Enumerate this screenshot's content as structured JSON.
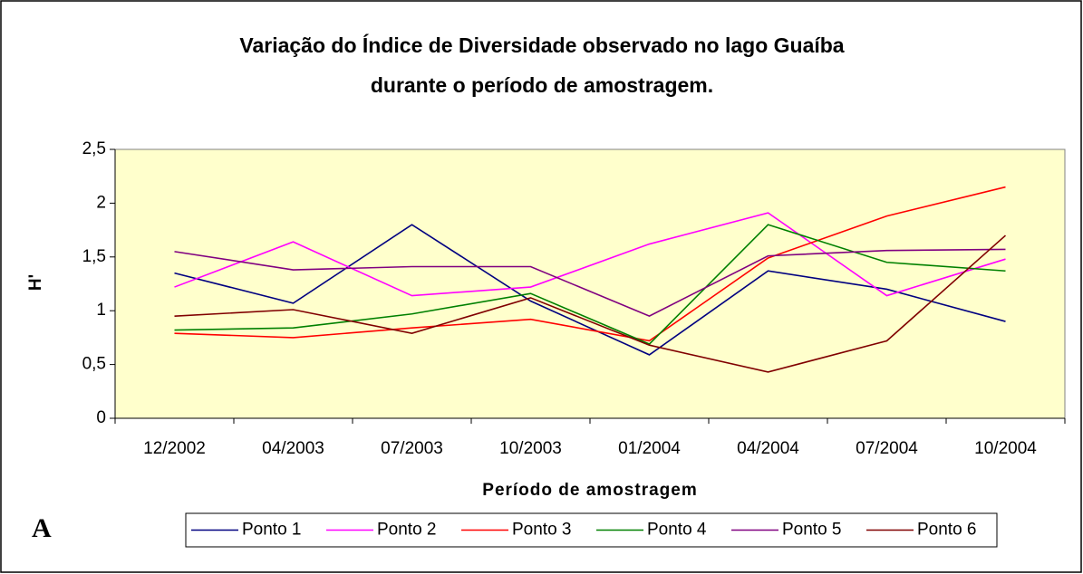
{
  "chart_data": {
    "type": "line",
    "title": [
      "Variação do Índice de Diversidade observado no lago Guaíba",
      "durante o período de amostragem."
    ],
    "x_label": "Período de amostragem",
    "y_label": "H'",
    "annotation": "A",
    "categories": [
      "12/2002",
      "04/2003",
      "07/2003",
      "10/2003",
      "01/2004",
      "04/2004",
      "07/2004",
      "10/2004"
    ],
    "series": [
      {
        "name": "Ponto 1",
        "color": "#000080",
        "values": [
          1.35,
          1.07,
          1.8,
          1.09,
          0.59,
          1.37,
          1.2,
          0.9
        ]
      },
      {
        "name": "Ponto 2",
        "color": "#ff00ff",
        "values": [
          1.22,
          1.64,
          1.14,
          1.22,
          1.62,
          1.91,
          1.14,
          1.48
        ]
      },
      {
        "name": "Ponto 3",
        "color": "#ff0000",
        "values": [
          0.79,
          0.75,
          0.84,
          0.92,
          0.72,
          1.49,
          1.88,
          2.15
        ]
      },
      {
        "name": "Ponto 4",
        "color": "#008000",
        "values": [
          0.82,
          0.84,
          0.97,
          1.16,
          0.69,
          1.8,
          1.45,
          1.37
        ]
      },
      {
        "name": "Ponto 5",
        "color": "#800080",
        "values": [
          1.55,
          1.38,
          1.41,
          1.41,
          0.95,
          1.51,
          1.56,
          1.57
        ]
      },
      {
        "name": "Ponto 6",
        "color": "#800000",
        "values": [
          0.95,
          1.01,
          0.79,
          1.12,
          0.68,
          0.43,
          0.72,
          1.7
        ]
      }
    ],
    "ylim": [
      0,
      2.5
    ],
    "yticks": [
      0,
      {
        "value": 0.5,
        "label": "0,5"
      },
      1,
      {
        "value": 1.5,
        "label": "1,5"
      },
      2,
      {
        "value": 2.5,
        "label": "2,5"
      }
    ],
    "plot_background": "#ffffcc",
    "legend": "bottom"
  }
}
